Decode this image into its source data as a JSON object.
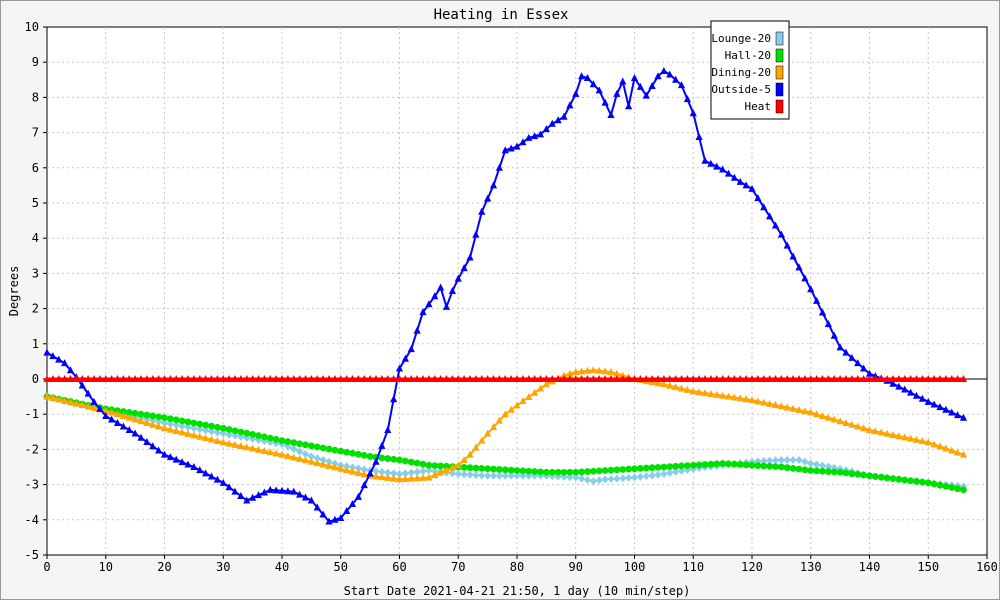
{
  "chart_data": {
    "type": "line",
    "title": "Heating in Essex",
    "xlabel": "Start Date 2021-04-21 21:50, 1 day (10 min/step)",
    "ylabel": "Degrees",
    "xlim": [
      0,
      160
    ],
    "ylim": [
      -5,
      10
    ],
    "xticks": [
      0,
      10,
      20,
      30,
      40,
      50,
      60,
      70,
      80,
      90,
      100,
      110,
      120,
      130,
      140,
      150,
      160
    ],
    "yticks": [
      -5,
      -4,
      -3,
      -2,
      -1,
      0,
      1,
      2,
      3,
      4,
      5,
      6,
      7,
      8,
      9,
      10
    ],
    "grid": true,
    "legend_position": "top-right",
    "series": [
      {
        "name": "Lounge-20",
        "color": "#87ceeb",
        "marker": "diamond",
        "x": [
          0,
          10,
          20,
          30,
          40,
          45,
          50,
          55,
          60,
          65,
          70,
          75,
          80,
          85,
          90,
          93,
          95,
          100,
          105,
          110,
          115,
          120,
          125,
          128,
          130,
          135,
          140,
          145,
          150,
          156
        ],
        "y": [
          -0.5,
          -0.9,
          -1.25,
          -1.55,
          -1.85,
          -2.2,
          -2.45,
          -2.6,
          -2.7,
          -2.6,
          -2.7,
          -2.75,
          -2.75,
          -2.75,
          -2.8,
          -2.9,
          -2.85,
          -2.8,
          -2.7,
          -2.55,
          -2.45,
          -2.35,
          -2.3,
          -2.3,
          -2.4,
          -2.55,
          -2.75,
          -2.85,
          -2.95,
          -3.05
        ]
      },
      {
        "name": "Hall-20",
        "color": "#00e000",
        "marker": "circle",
        "x": [
          0,
          10,
          20,
          30,
          40,
          50,
          55,
          60,
          65,
          70,
          75,
          80,
          85,
          90,
          95,
          100,
          105,
          110,
          115,
          120,
          125,
          130,
          135,
          140,
          145,
          150,
          156
        ],
        "y": [
          -0.5,
          -0.85,
          -1.1,
          -1.4,
          -1.75,
          -2.05,
          -2.2,
          -2.3,
          -2.45,
          -2.5,
          -2.55,
          -2.6,
          -2.65,
          -2.65,
          -2.6,
          -2.55,
          -2.5,
          -2.45,
          -2.4,
          -2.45,
          -2.5,
          -2.6,
          -2.65,
          -2.75,
          -2.85,
          -2.95,
          -3.15
        ]
      },
      {
        "name": "Dining-20",
        "color": "#ffa500",
        "marker": "triangle",
        "x": [
          0,
          10,
          20,
          30,
          40,
          50,
          55,
          60,
          65,
          70,
          72,
          75,
          78,
          80,
          85,
          88,
          90,
          93,
          96,
          100,
          105,
          110,
          120,
          130,
          140,
          150,
          156
        ],
        "y": [
          -0.5,
          -0.9,
          -1.4,
          -1.8,
          -2.15,
          -2.55,
          -2.75,
          -2.85,
          -2.8,
          -2.45,
          -2.15,
          -1.55,
          -1.0,
          -0.75,
          -0.15,
          0.1,
          0.2,
          0.25,
          0.2,
          0.0,
          -0.15,
          -0.35,
          -0.6,
          -0.95,
          -1.45,
          -1.8,
          -2.15
        ]
      },
      {
        "name": "Outside-5",
        "color": "#0000ff",
        "marker": "triangle",
        "x": [
          0,
          3,
          5,
          8,
          10,
          15,
          20,
          25,
          30,
          34,
          38,
          42,
          45,
          48,
          50,
          53,
          56,
          58,
          60,
          62,
          64,
          66,
          67,
          68,
          69,
          70,
          72,
          74,
          76,
          78,
          80,
          82,
          84,
          86,
          88,
          90,
          91,
          92,
          94,
          96,
          97,
          98,
          99,
          100,
          102,
          104,
          105,
          106,
          108,
          110,
          112,
          115,
          118,
          120,
          125,
          130,
          135,
          140,
          143,
          146,
          150,
          156
        ],
        "y": [
          0.75,
          0.45,
          0.05,
          -0.65,
          -1.05,
          -1.55,
          -2.15,
          -2.5,
          -2.95,
          -3.45,
          -3.15,
          -3.2,
          -3.45,
          -4.05,
          -3.95,
          -3.35,
          -2.35,
          -1.45,
          0.3,
          0.85,
          1.9,
          2.35,
          2.6,
          2.05,
          2.5,
          2.85,
          3.45,
          4.75,
          5.5,
          6.5,
          6.6,
          6.85,
          6.95,
          7.25,
          7.45,
          8.1,
          8.6,
          8.55,
          8.2,
          7.5,
          8.1,
          8.45,
          7.75,
          8.55,
          8.05,
          8.6,
          8.75,
          8.65,
          8.35,
          7.55,
          6.2,
          5.95,
          5.6,
          5.4,
          4.1,
          2.55,
          0.9,
          0.15,
          -0.05,
          -0.3,
          -0.65,
          -1.1
        ]
      },
      {
        "name": "Heat",
        "color": "#ff0000",
        "marker": "triangle",
        "x": [
          0,
          156
        ],
        "y": [
          0,
          0
        ]
      }
    ]
  }
}
